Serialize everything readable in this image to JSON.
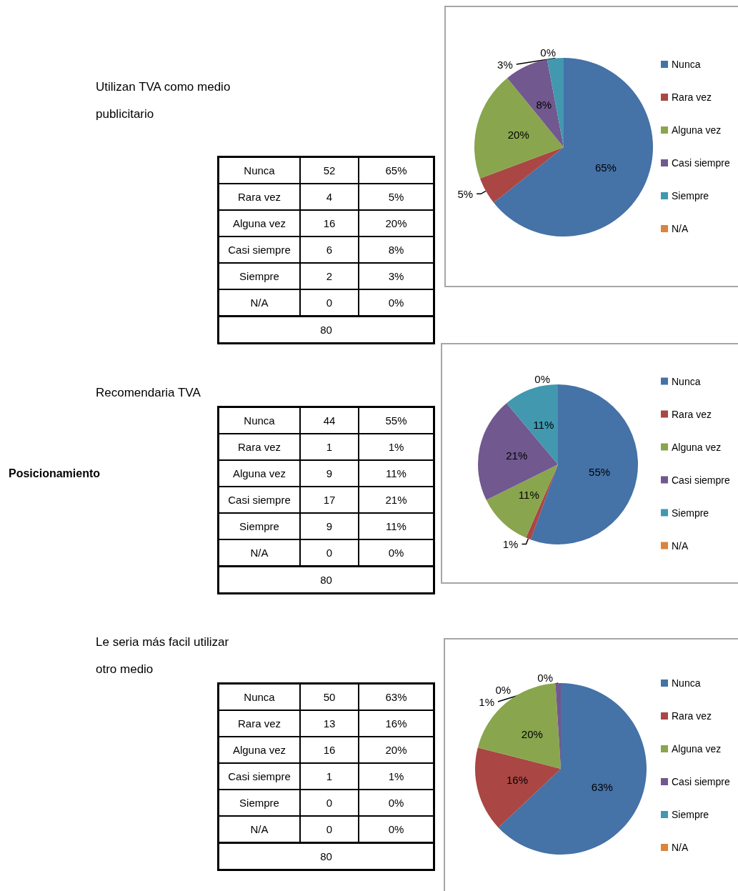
{
  "chart_data": [
    {
      "type": "other",
      "title": "Utilizan TVA como medio publicitario",
      "categories": [
        "Nunca",
        "Rara vez",
        "Alguna vez",
        "Casi siempre",
        "Siempre",
        "N/A"
      ],
      "series": [
        {
          "values": [
            52,
            4,
            16,
            6,
            2,
            0
          ]
        },
        {
          "values": [
            65,
            5,
            20,
            8,
            3,
            0
          ],
          "value_labels": [
            "65%",
            "5%",
            "20%",
            "8%",
            "3%",
            "0%"
          ]
        }
      ],
      "data_labels": true,
      "totals": [
        "80"
      ]
    },
    {
      "type": "pie",
      "categories": [
        "Nunca",
        "Rara vez",
        "Alguna vez",
        "Casi siempre",
        "Siempre",
        "N/A"
      ],
      "values": [
        65,
        5,
        20,
        8,
        3,
        0
      ],
      "colors": [
        "#4572a7",
        "#aa4643",
        "#89a54e",
        "#71588f",
        "#4198af",
        "#db843d"
      ],
      "value_labels": [
        "65%",
        "5%",
        "20%",
        "8%",
        "3%",
        "0%"
      ],
      "legend": "right"
    },
    {
      "type": "other",
      "title": "Recomendaria TVA",
      "categories": [
        "Nunca",
        "Rara vez",
        "Alguna vez",
        "Casi siempre",
        "Siempre",
        "N/A"
      ],
      "series": [
        {
          "values": [
            44,
            1,
            9,
            17,
            9,
            0
          ]
        },
        {
          "values": [
            55,
            1,
            11,
            21,
            11,
            0
          ],
          "value_labels": [
            "55%",
            "1%",
            "11%",
            "21%",
            "11%",
            "0%"
          ]
        }
      ],
      "data_labels": true,
      "totals": [
        "80"
      ],
      "annotations": [
        "Posicionamiento"
      ]
    },
    {
      "type": "pie",
      "categories": [
        "Nunca",
        "Rara vez",
        "Alguna vez",
        "Casi siempre",
        "Siempre",
        "N/A"
      ],
      "values": [
        55,
        1,
        11,
        21,
        11,
        0
      ],
      "colors": [
        "#4572a7",
        "#aa4643",
        "#89a54e",
        "#71588f",
        "#4198af",
        "#db843d"
      ],
      "value_labels": [
        "55%",
        "1%",
        "11%",
        "21%",
        "11%",
        "0%"
      ],
      "legend": "right"
    },
    {
      "type": "other",
      "title": "Le seria más facil utilizar otro medio",
      "categories": [
        "Nunca",
        "Rara vez",
        "Alguna vez",
        "Casi siempre",
        "Siempre",
        "N/A"
      ],
      "series": [
        {
          "values": [
            50,
            13,
            16,
            1,
            0,
            0
          ]
        },
        {
          "values": [
            63,
            16,
            20,
            1,
            0,
            0
          ],
          "value_labels": [
            "63%",
            "16%",
            "20%",
            "1%",
            "0%",
            "0%"
          ]
        }
      ],
      "data_labels": true,
      "totals": [
        "80"
      ]
    },
    {
      "type": "pie",
      "categories": [
        "Nunca",
        "Rara vez",
        "Alguna vez",
        "Casi siempre",
        "Siempre",
        "N/A"
      ],
      "values": [
        63,
        16,
        20,
        1,
        0,
        0
      ],
      "colors": [
        "#4572a7",
        "#aa4643",
        "#89a54e",
        "#71588f",
        "#4198af",
        "#db843d"
      ],
      "value_labels": [
        "63%",
        "16%",
        "20%",
        "1%",
        "0%",
        "0%"
      ],
      "legend": "right"
    }
  ]
}
